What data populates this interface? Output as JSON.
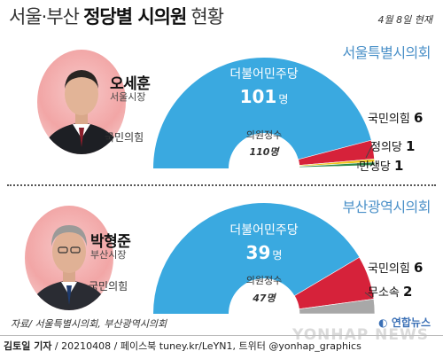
{
  "header": {
    "title_light": "서울·부산",
    "title_bold": "정당별 시의원",
    "title_tail": "현황",
    "date": "4월 8일 현재"
  },
  "colors": {
    "democratic": "#3aa9e0",
    "ppp": "#d6223a",
    "justice": "#f0c419",
    "minsaeng": "#2f8a4a",
    "independent": "#a8a8a8",
    "council_title": "#4a90c8"
  },
  "seoul": {
    "person": {
      "name": "오세훈",
      "role": "서울시장",
      "party": "국민의힘"
    },
    "council_title": "서울특별시의회",
    "total_label": "의원정수",
    "total_value": "110명"
  },
  "busan": {
    "person": {
      "name": "박형준",
      "role": "부산시장",
      "party": "국민의힘"
    },
    "council_title": "부산광역시의회",
    "total_label": "의원정수",
    "total_value": "47명"
  },
  "chart_data": [
    {
      "type": "pie",
      "variant": "half-donut",
      "title": "서울특별시의회",
      "total": 110,
      "series": [
        {
          "label": "더불어민주당",
          "value": 101,
          "value_text": "101",
          "unit": "명",
          "color": "#3aa9e0"
        },
        {
          "label": "국민의힘",
          "value": 6,
          "value_text": "6",
          "color": "#d6223a"
        },
        {
          "label": "정의당",
          "value": 1,
          "value_text": "1",
          "color": "#f0c419"
        },
        {
          "label": "민생당",
          "value": 1,
          "value_text": "1",
          "color": "#2f8a4a"
        }
      ]
    },
    {
      "type": "pie",
      "variant": "half-donut",
      "title": "부산광역시의회",
      "total": 47,
      "series": [
        {
          "label": "더불어민주당",
          "value": 39,
          "value_text": "39",
          "unit": "명",
          "color": "#3aa9e0"
        },
        {
          "label": "국민의힘",
          "value": 6,
          "value_text": "6",
          "color": "#d6223a"
        },
        {
          "label": "무소속",
          "value": 2,
          "value_text": "2",
          "color": "#a8a8a8"
        }
      ]
    }
  ],
  "source": "자료/ 서울특별시의회, 부산광역시의회",
  "logo": "연합뉴스",
  "footer": {
    "author": "김토일 기자",
    "rest": " / 20210408 / 페이스북 tuney.kr/LeYN1, 트위터 @yonhap_graphics"
  },
  "watermark": "YONHAP NEWS"
}
